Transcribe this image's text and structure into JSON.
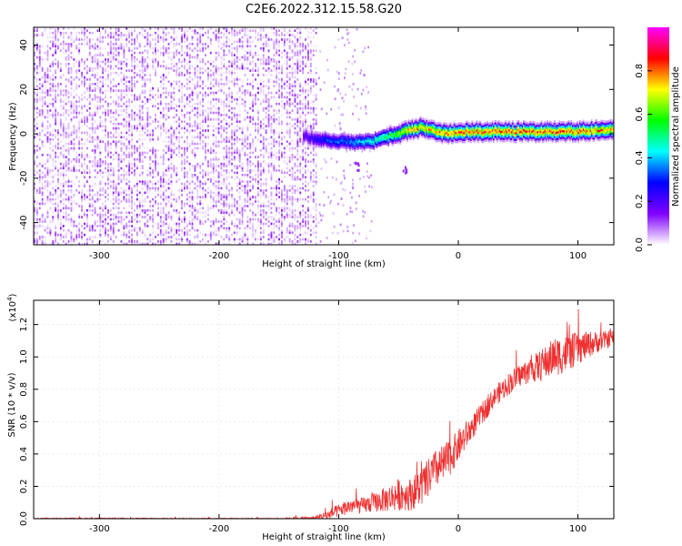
{
  "figure": {
    "title": "C2E6.2022.312.15.58.G20"
  },
  "chart_data": [
    {
      "type": "heatmap",
      "title": "C2E6.2022.312.15.58.G20",
      "xlabel": "Height of straight line (km)",
      "ylabel": "Frequency (Hz)",
      "xlim": [
        -355,
        130
      ],
      "ylim": [
        -50,
        48
      ],
      "xticks": [
        -300,
        -200,
        -100,
        0,
        100
      ],
      "yticks": [
        40,
        20,
        0,
        -20,
        -40
      ],
      "colorbar": {
        "label": "Normalized spectral amplitude",
        "range": [
          0,
          1
        ],
        "ticks": [
          "0.0",
          "0.2",
          "0.4",
          "0.6",
          "0.8"
        ],
        "colormap": [
          "#ffffff",
          "#8000ff",
          "#0000ff",
          "#00ffff",
          "#00ff00",
          "#ffff00",
          "#ff0000",
          "#ff00ff"
        ]
      },
      "noise_region": {
        "x_range": [
          -355,
          -118
        ],
        "y_range": [
          -50,
          48
        ],
        "amplitude_range": [
          0.0,
          0.15
        ]
      },
      "signal_band": {
        "x": [
          -130,
          -110,
          -90,
          -70,
          -50,
          -40,
          -30,
          -20,
          -10,
          0,
          20,
          40,
          60,
          80,
          100,
          130
        ],
        "frequency_center": [
          -1,
          -3,
          -4,
          -3,
          0,
          2,
          3,
          1,
          0,
          1,
          1,
          1,
          1,
          1,
          1,
          2
        ],
        "peak_amplitude": [
          0.2,
          0.35,
          0.4,
          0.5,
          0.7,
          0.85,
          0.8,
          0.85,
          0.85,
          0.9,
          0.9,
          0.9,
          0.9,
          0.9,
          0.9,
          0.85
        ]
      },
      "annotations": [
        {
          "type": "blob",
          "x": -85,
          "frequency": -14
        },
        {
          "type": "blob",
          "x": -45,
          "frequency": -16
        }
      ]
    },
    {
      "type": "line",
      "xlabel": "Height of straight line (km)",
      "ylabel": "SNR (10 * v/v)",
      "y_multiplier": "(x10⁴)",
      "y_multiplier_base": "(x10",
      "y_multiplier_exp": "4",
      "xlim": [
        -355,
        130
      ],
      "ylim": [
        0,
        1.35
      ],
      "xticks": [
        -300,
        -200,
        -100,
        0,
        100
      ],
      "yticks": [
        "0.0",
        "0.2",
        "0.4",
        "0.6",
        "0.8",
        "1.0",
        "1.2"
      ],
      "series": [
        {
          "color": "#ef3030",
          "x": [
            -355,
            -300,
            -250,
            -200,
            -150,
            -120,
            -110,
            -100,
            -90,
            -80,
            -70,
            -60,
            -50,
            -40,
            -30,
            -20,
            -10,
            0,
            10,
            20,
            30,
            40,
            50,
            60,
            70,
            80,
            90,
            100,
            110,
            120,
            130
          ],
          "values": [
            0.0,
            0.0,
            0.0,
            0.0,
            0.0,
            0.005,
            0.02,
            0.05,
            0.08,
            0.08,
            0.1,
            0.12,
            0.15,
            0.15,
            0.2,
            0.3,
            0.35,
            0.45,
            0.55,
            0.65,
            0.75,
            0.82,
            0.88,
            0.92,
            0.95,
            1.0,
            1.02,
            1.05,
            1.08,
            1.1,
            1.12
          ],
          "noise": [
            0.005,
            0.005,
            0.005,
            0.005,
            0.005,
            0.01,
            0.03,
            0.04,
            0.05,
            0.05,
            0.06,
            0.08,
            0.1,
            0.1,
            0.12,
            0.12,
            0.12,
            0.1,
            0.08,
            0.07,
            0.06,
            0.07,
            0.07,
            0.08,
            0.1,
            0.12,
            0.12,
            0.1,
            0.08,
            0.06,
            0.05
          ]
        }
      ]
    }
  ]
}
